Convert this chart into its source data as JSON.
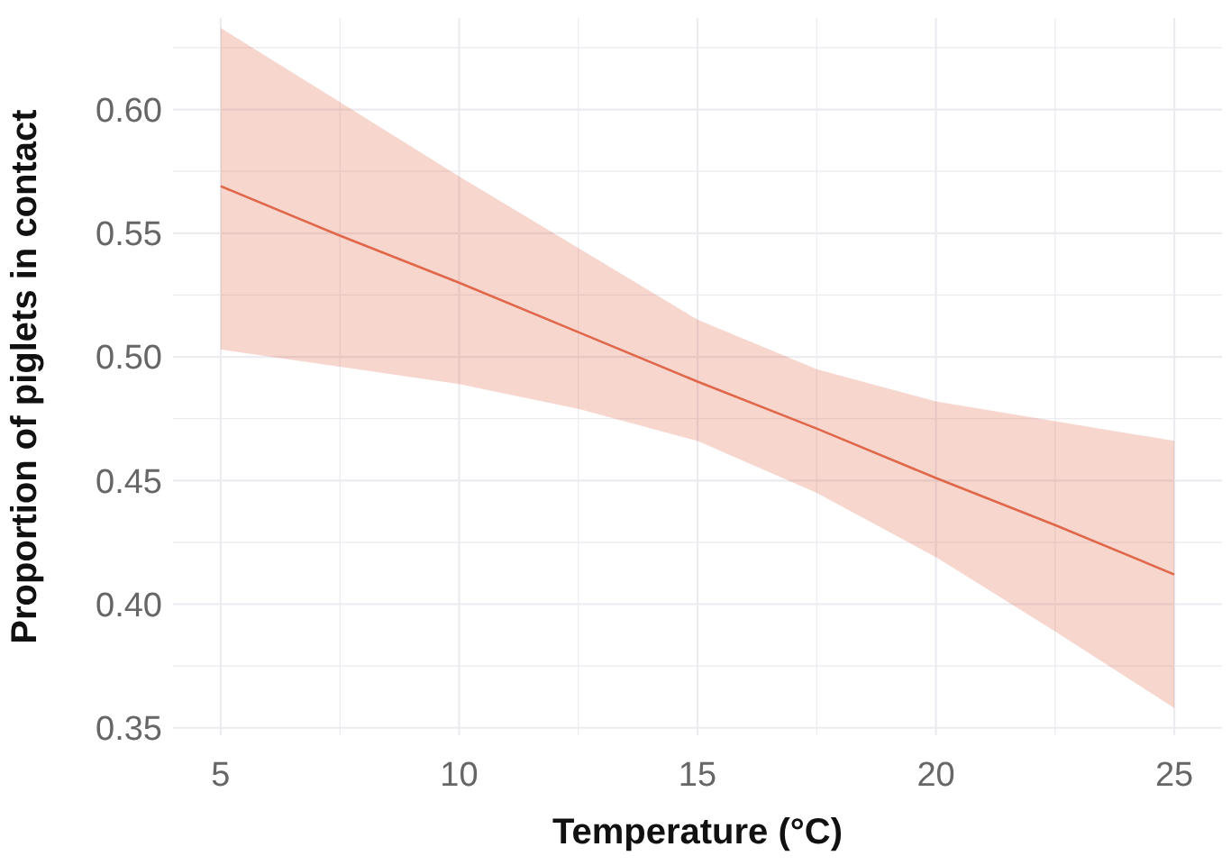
{
  "chart_data": {
    "type": "line",
    "xlabel": "Temperature (°C)",
    "ylabel": "Proportion of piglets in contact",
    "x": [
      5,
      7.5,
      10,
      12.5,
      15,
      17.5,
      20,
      22.5,
      25
    ],
    "series": [
      {
        "color": "#e0674a",
        "values": [
          0.569,
          0.549,
          0.53,
          0.51,
          0.49,
          0.471,
          0.451,
          0.432,
          0.412
        ],
        "lower": [
          0.503,
          0.496,
          0.489,
          0.479,
          0.466,
          0.445,
          0.419,
          0.389,
          0.358
        ],
        "upper": [
          0.633,
          0.603,
          0.573,
          0.544,
          0.515,
          0.495,
          0.482,
          0.474,
          0.466
        ]
      }
    ],
    "xlim": [
      4,
      26
    ],
    "ylim": [
      0.347,
      0.637
    ],
    "xticks": [
      5,
      {
        "value": 7.5,
        "label": null
      },
      10,
      {
        "value": 12.5,
        "label": null
      },
      15,
      {
        "value": 17.5,
        "label": null
      },
      20,
      {
        "value": 22.5,
        "label": null
      },
      25
    ],
    "yticks": [
      {
        "value": 0.35,
        "label": "0.35"
      },
      {
        "value": 0.375,
        "label": null
      },
      {
        "value": 0.4,
        "label": "0.40"
      },
      {
        "value": 0.425,
        "label": null
      },
      {
        "value": 0.45,
        "label": "0.45"
      },
      {
        "value": 0.475,
        "label": null
      },
      {
        "value": 0.5,
        "label": "0.50"
      },
      {
        "value": 0.525,
        "label": null
      },
      {
        "value": 0.55,
        "label": "0.55"
      },
      {
        "value": 0.575,
        "label": null
      },
      {
        "value": 0.6,
        "label": "0.60"
      },
      {
        "value": 0.625,
        "label": null
      }
    ],
    "grid": true,
    "line_style": "solid",
    "marker": "none"
  }
}
